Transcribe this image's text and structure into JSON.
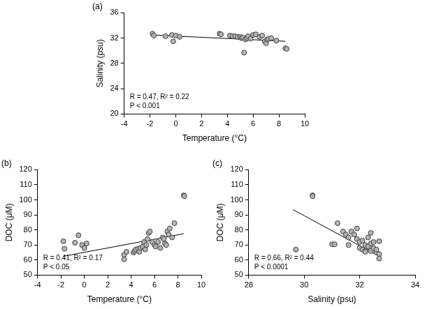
{
  "chart_data": [
    {
      "type": "scatter",
      "title": "(a)",
      "x_label": "Temperature (°C)",
      "y_label": "Salinity (psu)",
      "xlim": [
        -4,
        10
      ],
      "ylim": [
        20,
        36
      ],
      "xticks": [
        -4,
        -2,
        0,
        2,
        4,
        6,
        8,
        10
      ],
      "yticks": [
        20,
        24,
        28,
        32,
        36
      ],
      "grid": false,
      "series": [
        {
          "type": "scatter",
          "color": "#b3b3b3",
          "marker": "circle",
          "x": [
            -1.8,
            -1.7,
            -0.8,
            -0.3,
            -0.2,
            0,
            0.3,
            3.4,
            3.5,
            4.2,
            4.4,
            4.6,
            4.8,
            5.0,
            5.1,
            5.2,
            5.3,
            5.4,
            5.5,
            5.6,
            5.8,
            6.0,
            6.2,
            6.5,
            6.7,
            6.9,
            7.0,
            7.1,
            7.2,
            7.4,
            7.8,
            8.5,
            8.6
          ],
          "values": [
            32.7,
            32.4,
            32.3,
            32.5,
            31.5,
            32.4,
            32.2,
            32.7,
            32.6,
            32.4,
            32.3,
            32.3,
            32.2,
            32.2,
            32.0,
            32.1,
            29.7,
            31.8,
            32.0,
            32.3,
            31.9,
            32.5,
            32.6,
            32.2,
            32.4,
            31.5,
            31.2,
            31.8,
            31.9,
            32.0,
            31.6,
            30.4,
            30.3
          ]
        },
        {
          "type": "line",
          "color": "#000000",
          "line_style": "solid",
          "x": [
            -1.8,
            8.5
          ],
          "values": [
            32.5,
            31.5
          ]
        }
      ],
      "annotations": [
        "R = 0.47, R² = 0.22",
        "P < 0.001"
      ]
    },
    {
      "type": "scatter",
      "title": "(b)",
      "x_label": "Temperature (°C)",
      "y_label": "DOC (μM)",
      "xlim": [
        -4,
        10
      ],
      "ylim": [
        50,
        120
      ],
      "xticks": [
        -4,
        -2,
        0,
        2,
        4,
        6,
        8,
        10
      ],
      "yticks": [
        50,
        60,
        70,
        80,
        90,
        100,
        110,
        120
      ],
      "grid": false,
      "series": [
        {
          "type": "scatter",
          "color": "#b3b3b3",
          "marker": "circle",
          "x": [
            -1.8,
            -1.7,
            -0.8,
            -0.5,
            -0.2,
            0,
            0.2,
            3.4,
            3.4,
            3.6,
            4.2,
            4.3,
            4.4,
            4.6,
            4.7,
            4.8,
            5.0,
            5.1,
            5.2,
            5.3,
            5.4,
            5.5,
            5.6,
            5.8,
            6.0,
            6.1,
            6.3,
            6.5,
            6.7,
            6.8,
            6.9,
            7.0,
            7.1,
            7.2,
            7.3,
            7.5,
            7.7,
            8.5,
            8.55
          ],
          "values": [
            72.5,
            67.5,
            71.5,
            76.5,
            70,
            68,
            71,
            63.5,
            60.5,
            65.5,
            65,
            66,
            67,
            67.5,
            65.5,
            68,
            69,
            72,
            67,
            70,
            74,
            78,
            79,
            72,
            70,
            69,
            72,
            68,
            75,
            74,
            71,
            70,
            79,
            77,
            81,
            75,
            84.5,
            103,
            102.5
          ]
        },
        {
          "type": "line",
          "color": "#000000",
          "line_style": "solid",
          "x": [
            -1.8,
            8.5
          ],
          "values": [
            62.5,
            77.5
          ]
        }
      ],
      "annotations": [
        "R = 0.41, R² = 0.17",
        "P < 0.05"
      ]
    },
    {
      "type": "scatter",
      "title": "(c)",
      "x_label": "Salinity (psu)",
      "y_label": "DOC (μM)",
      "xlim": [
        28,
        34
      ],
      "ylim": [
        50,
        120
      ],
      "xticks": [
        28,
        30,
        32,
        34
      ],
      "yticks": [
        50,
        60,
        70,
        80,
        90,
        100,
        110,
        120
      ],
      "grid": false,
      "series": [
        {
          "type": "scatter",
          "color": "#b3b3b3",
          "marker": "circle",
          "x": [
            29.7,
            30.3,
            30.3,
            31.0,
            31.1,
            31.2,
            31.4,
            31.5,
            31.6,
            31.6,
            31.7,
            31.8,
            31.9,
            31.9,
            32.0,
            32.0,
            32.1,
            32.1,
            32.2,
            32.2,
            32.3,
            32.3,
            32.4,
            32.4,
            32.5,
            32.5,
            32.6,
            32.6,
            32.7,
            32.7,
            32.7,
            32.4,
            32.2
          ],
          "values": [
            67,
            103,
            102.5,
            70.5,
            70.5,
            84.5,
            79,
            77,
            75,
            70,
            79,
            77,
            81,
            74,
            72,
            68,
            73,
            67,
            70,
            66,
            75,
            69,
            71,
            66,
            68,
            72,
            65,
            67,
            61,
            64,
            72.5,
            78,
            65.5
          ]
        },
        {
          "type": "line",
          "color": "#000000",
          "line_style": "solid",
          "x": [
            29.6,
            32.7
          ],
          "values": [
            93.5,
            62.5
          ]
        }
      ],
      "annotations": [
        "R = 0.66, R² = 0.44",
        "P < 0.0001"
      ]
    }
  ]
}
